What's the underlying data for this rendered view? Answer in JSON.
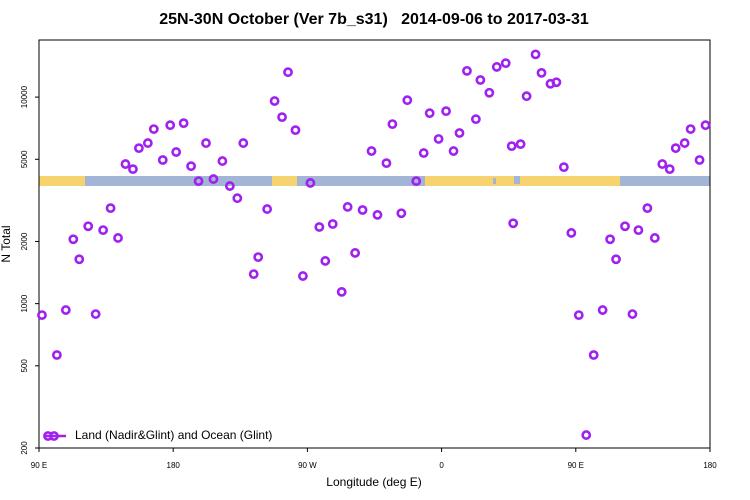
{
  "chart_data": {
    "type": "scatter",
    "title": "25N-30N October (Ver 7b_s31)   2014-09-06 to 2017-03-31",
    "xlabel": "Longitude (deg E)",
    "ylabel": "N Total",
    "log_y": true,
    "legend": "bottom-left",
    "xlim": [
      90,
      540
    ],
    "ylim": [
      200,
      18900
    ],
    "xticks": [
      {
        "value": 90,
        "label": "90 E"
      },
      180,
      {
        "value": 270,
        "label": "90 W"
      },
      {
        "value": 360,
        "label": "0"
      },
      {
        "value": 450,
        "label": "90 E"
      },
      {
        "value": 540,
        "label": "180"
      }
    ],
    "yticks": [
      200,
      500,
      1000,
      2000,
      5000,
      10000
    ],
    "x": [
      92,
      102,
      108,
      113,
      117,
      123,
      128,
      133,
      138,
      143,
      148,
      153,
      157,
      163,
      167,
      173,
      178,
      182,
      187,
      192,
      197,
      202,
      207,
      213,
      218,
      223,
      227,
      234,
      237,
      243,
      248,
      253,
      257,
      262,
      267,
      272,
      278,
      282,
      287,
      293,
      297,
      302,
      307,
      313,
      317,
      323,
      327,
      333,
      337,
      343,
      348,
      352,
      358,
      363,
      368,
      372,
      377,
      383,
      386,
      392,
      397,
      403,
      407,
      408,
      413,
      417,
      423,
      427,
      433,
      437,
      442,
      447,
      452,
      457,
      462,
      468,
      473,
      477,
      483,
      488,
      492,
      498,
      503,
      508,
      513,
      517,
      523,
      527,
      533,
      537
    ],
    "series": [
      {
        "name": "Land (Nadir&Glint) and Ocean (Glint)",
        "color": "#a020f0",
        "values": [
          880,
          564,
          931,
          2050,
          1640,
          2370,
          890,
          2270,
          2900,
          2080,
          4740,
          4480,
          5660,
          5990,
          7000,
          4960,
          7310,
          5420,
          7480,
          4630,
          3920,
          5990,
          4010,
          4900,
          3710,
          3240,
          5990,
          1390,
          1680,
          2870,
          9570,
          8000,
          13200,
          6920,
          1360,
          3840,
          2350,
          1610,
          2430,
          1140,
          2940,
          1760,
          2840,
          5480,
          2690,
          4790,
          7400,
          2740,
          9660,
          3920,
          5360,
          8360,
          6270,
          8550,
          5480,
          6700,
          13400,
          7820,
          12100,
          10500,
          14000,
          14600,
          5790,
          2450,
          5920,
          10100,
          16100,
          13100,
          11600,
          11800,
          4580,
          2200,
          880,
          231,
          564,
          931,
          2050,
          1640,
          2370,
          890,
          2270,
          2900,
          2080,
          4740,
          4480,
          5660,
          5990,
          7000,
          4960,
          7310
        ]
      }
    ]
  }
}
